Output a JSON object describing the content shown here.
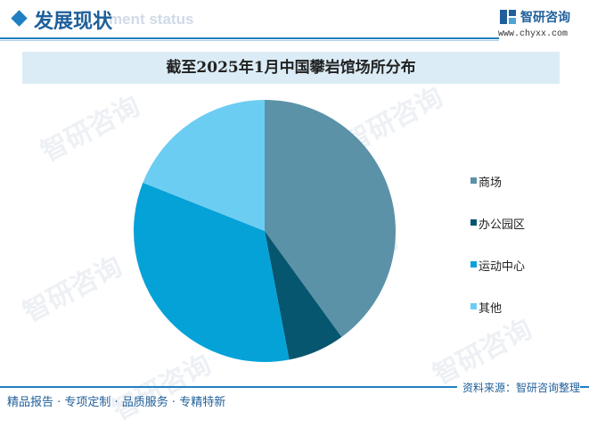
{
  "header": {
    "title": "发展现状",
    "subtitle_ghost": "ment status",
    "brand_name": "智研咨询",
    "brand_url": "www.chyxx.com"
  },
  "watermark_text": "智研咨询",
  "chart_data": {
    "type": "pie",
    "title": "截至2025年1月中国攀岩馆场所分布",
    "slices": [
      {
        "label": "商场",
        "value": 40,
        "color": "#5b92a8"
      },
      {
        "label": "办公园区",
        "value": 7,
        "color": "#06566f"
      },
      {
        "label": "运动中心",
        "value": 34,
        "color": "#05a2d8"
      },
      {
        "label": "其他",
        "value": 19,
        "color": "#6ccdf2"
      }
    ],
    "legend_position": "right",
    "start_angle_deg": 0,
    "direction": "clockwise"
  },
  "footer": {
    "left_text": "精品报告 · 专项定制 · 品质服务 · 专精特新",
    "source_text": "资料来源：智研咨询整理"
  },
  "colors": {
    "accent": "#1f7fc2",
    "banner_bg": "#dbecf6"
  }
}
